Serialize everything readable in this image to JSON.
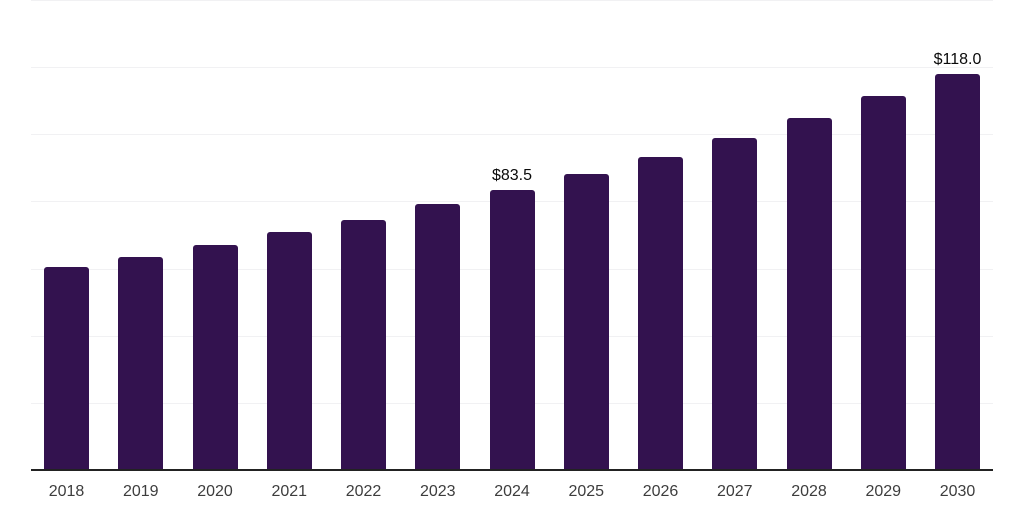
{
  "chart_data": {
    "type": "bar",
    "categories": [
      "2018",
      "2019",
      "2020",
      "2021",
      "2022",
      "2023",
      "2024",
      "2025",
      "2026",
      "2027",
      "2028",
      "2029",
      "2030"
    ],
    "values": [
      60.4,
      63.4,
      67.1,
      70.9,
      74.6,
      79.1,
      83.5,
      88.2,
      93.1,
      98.9,
      104.9,
      111.5,
      118.0
    ],
    "data_labels": {
      "2024": "$83.5",
      "2030": "$118.0"
    },
    "title": "",
    "xlabel": "",
    "ylabel": "",
    "ylim": [
      0,
      140
    ],
    "gridline_step": 20,
    "grid": true,
    "legend": false,
    "bar_color": "#33124f",
    "gridline_color": "#f1f1f3",
    "axis_line_color": "#222222",
    "value_label_color": "#0a0a0a",
    "tick_label_color": "#3d3d3d",
    "background_color": "#ffffff"
  }
}
